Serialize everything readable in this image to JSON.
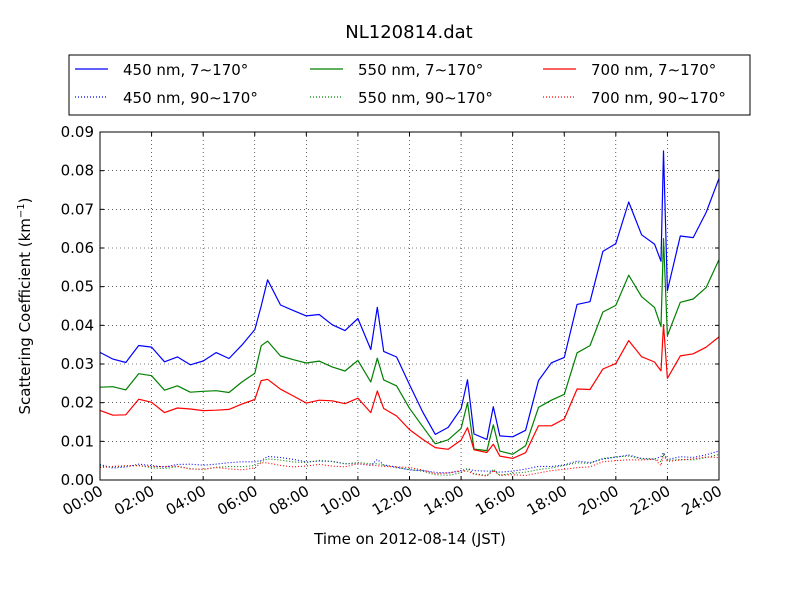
{
  "chart_data": {
    "type": "line",
    "title": "NL120814.dat",
    "xlabel": "Time on 2012-08-14 (JST)",
    "ylabel": "Scattering Coefficient (km",
    "ylabel_sup": "−1",
    "ylabel_close": ")",
    "xlim": [
      0,
      24
    ],
    "ylim": [
      0,
      0.09
    ],
    "x_ticks": [
      0,
      2,
      4,
      6,
      8,
      10,
      12,
      14,
      16,
      18,
      20,
      22,
      24
    ],
    "x_tick_labels": [
      "00:00",
      "02:00",
      "04:00",
      "06:00",
      "08:00",
      "10:00",
      "12:00",
      "14:00",
      "16:00",
      "18:00",
      "20:00",
      "22:00",
      "24:00"
    ],
    "y_ticks": [
      0,
      0.01,
      0.02,
      0.03,
      0.04,
      0.05,
      0.06,
      0.07,
      0.08,
      0.09
    ],
    "y_tick_labels": [
      "0.00",
      "0.01",
      "0.02",
      "0.03",
      "0.04",
      "0.05",
      "0.06",
      "0.07",
      "0.08",
      "0.09"
    ],
    "grid": true,
    "legend_position": "top",
    "x": [
      0,
      0.5,
      1,
      1.5,
      2,
      2.5,
      3,
      3.5,
      4,
      4.5,
      5,
      5.5,
      6,
      6.25,
      6.5,
      7,
      7.5,
      8,
      8.5,
      9,
      9.5,
      10,
      10.5,
      10.75,
      11,
      11.5,
      12,
      12.5,
      13,
      13.5,
      14,
      14.25,
      14.5,
      15,
      15.25,
      15.5,
      16,
      16.5,
      17,
      17.5,
      18,
      18.5,
      19,
      19.5,
      20,
      20.5,
      21,
      21.5,
      21.75,
      21.85,
      22,
      22.5,
      23,
      23.5,
      24
    ],
    "series": [
      {
        "name": "450 nm, 7∼170°",
        "color": "#0000ff",
        "style": "solid",
        "values": [
          0.033,
          0.031,
          0.031,
          0.036,
          0.035,
          0.031,
          0.033,
          0.031,
          0.031,
          0.033,
          0.032,
          0.035,
          0.038,
          0.046,
          0.051,
          0.045,
          0.043,
          0.041,
          0.042,
          0.04,
          0.038,
          0.041,
          0.034,
          0.044,
          0.034,
          0.032,
          0.025,
          0.019,
          0.013,
          0.014,
          0.019,
          0.025,
          0.013,
          0.011,
          0.019,
          0.011,
          0.011,
          0.013,
          0.025,
          0.029,
          0.031,
          0.045,
          0.045,
          0.058,
          0.061,
          0.072,
          0.063,
          0.061,
          0.056,
          0.085,
          0.05,
          0.064,
          0.063,
          0.07,
          0.078
        ]
      },
      {
        "name": "550 nm, 7∼170°",
        "color": "#008000",
        "style": "solid",
        "values": [
          0.024,
          0.023,
          0.023,
          0.027,
          0.026,
          0.023,
          0.025,
          0.023,
          0.023,
          0.024,
          0.024,
          0.026,
          0.028,
          0.034,
          0.037,
          0.033,
          0.031,
          0.03,
          0.031,
          0.029,
          0.027,
          0.03,
          0.025,
          0.032,
          0.025,
          0.023,
          0.018,
          0.014,
          0.009,
          0.01,
          0.014,
          0.019,
          0.009,
          0.008,
          0.014,
          0.008,
          0.008,
          0.01,
          0.019,
          0.021,
          0.023,
          0.033,
          0.034,
          0.043,
          0.045,
          0.052,
          0.046,
          0.044,
          0.04,
          0.062,
          0.037,
          0.045,
          0.046,
          0.05,
          0.057
        ]
      },
      {
        "name": "700 nm, 7∼170°",
        "color": "#ff0000",
        "style": "solid",
        "values": [
          0.018,
          0.017,
          0.017,
          0.02,
          0.019,
          0.017,
          0.018,
          0.017,
          0.017,
          0.018,
          0.018,
          0.019,
          0.021,
          0.025,
          0.027,
          0.024,
          0.022,
          0.021,
          0.022,
          0.021,
          0.02,
          0.022,
          0.018,
          0.023,
          0.018,
          0.016,
          0.013,
          0.01,
          0.007,
          0.007,
          0.01,
          0.014,
          0.007,
          0.006,
          0.01,
          0.006,
          0.006,
          0.007,
          0.014,
          0.015,
          0.017,
          0.024,
          0.024,
          0.03,
          0.031,
          0.036,
          0.032,
          0.031,
          0.028,
          0.041,
          0.026,
          0.031,
          0.032,
          0.034,
          0.037
        ]
      },
      {
        "name": "450 nm, 90∼170°",
        "color": "#0000ff",
        "style": "dotted",
        "values": [
          0.004,
          0.0038,
          0.0038,
          0.0042,
          0.0041,
          0.0038,
          0.004,
          0.0038,
          0.0038,
          0.004,
          0.0039,
          0.0041,
          0.0045,
          0.0052,
          0.0058,
          0.0052,
          0.005,
          0.0048,
          0.0049,
          0.0047,
          0.0045,
          0.0048,
          0.0041,
          0.0051,
          0.0041,
          0.0039,
          0.0032,
          0.0026,
          0.002,
          0.0021,
          0.0025,
          0.0031,
          0.002,
          0.0019,
          0.0025,
          0.0019,
          0.0019,
          0.0021,
          0.0031,
          0.0034,
          0.0036,
          0.0045,
          0.0046,
          0.0058,
          0.006,
          0.0066,
          0.0062,
          0.006,
          0.0057,
          0.0075,
          0.0055,
          0.0063,
          0.0064,
          0.0068,
          0.0075
        ]
      },
      {
        "name": "550 nm, 90∼170°",
        "color": "#008000",
        "style": "dotted",
        "values": [
          0.0036,
          0.0034,
          0.0034,
          0.0038,
          0.0037,
          0.0034,
          0.0036,
          0.0034,
          0.0034,
          0.0036,
          0.0035,
          0.0037,
          0.004,
          0.0047,
          0.0052,
          0.0047,
          0.0045,
          0.0043,
          0.0044,
          0.0042,
          0.004,
          0.0043,
          0.0037,
          0.0046,
          0.0037,
          0.0035,
          0.0029,
          0.0023,
          0.0018,
          0.0019,
          0.0022,
          0.0028,
          0.0018,
          0.0017,
          0.0022,
          0.0017,
          0.0017,
          0.0019,
          0.0028,
          0.003,
          0.0032,
          0.004,
          0.0041,
          0.0051,
          0.0053,
          0.0059,
          0.0055,
          0.0053,
          0.005,
          0.0066,
          0.0049,
          0.0056,
          0.0057,
          0.006,
          0.0066
        ]
      },
      {
        "name": "700 nm, 90∼170°",
        "color": "#ff0000",
        "style": "dotted",
        "values": [
          0.0032,
          0.003,
          0.003,
          0.0034,
          0.0033,
          0.003,
          0.0032,
          0.003,
          0.003,
          0.0032,
          0.0031,
          0.0033,
          0.0036,
          0.0042,
          0.0046,
          0.0042,
          0.004,
          0.0038,
          0.0039,
          0.0037,
          0.0035,
          0.0038,
          0.0033,
          0.0041,
          0.0033,
          0.0031,
          0.0026,
          0.0021,
          0.0016,
          0.0017,
          0.002,
          0.0025,
          0.0016,
          0.0015,
          0.002,
          0.0015,
          0.0015,
          0.0017,
          0.0025,
          0.0027,
          0.0029,
          0.0036,
          0.0037,
          0.0045,
          0.0047,
          0.0052,
          0.0049,
          0.0047,
          0.0044,
          0.0058,
          0.0043,
          0.005,
          0.0051,
          0.0054,
          0.0058
        ]
      }
    ],
    "legend_order": [
      0,
      1,
      2,
      3,
      4,
      5
    ]
  }
}
